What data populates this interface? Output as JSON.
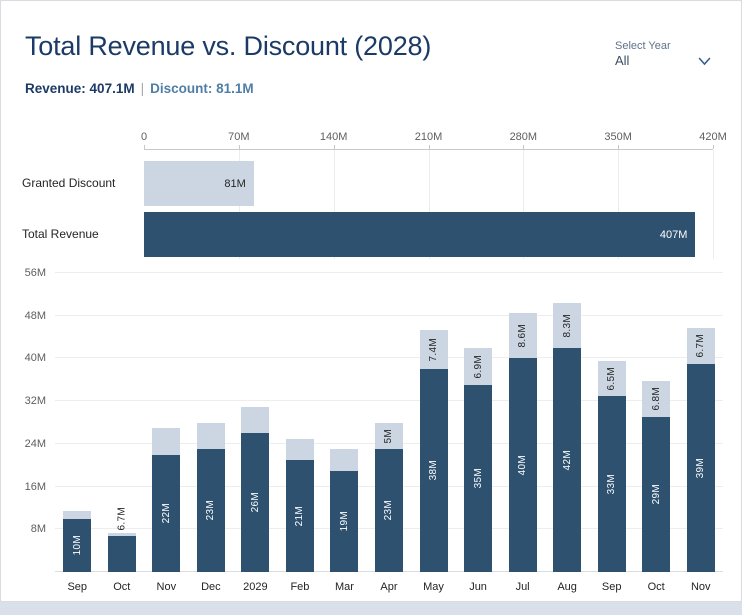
{
  "header": {
    "title": "Total Revenue vs. Discount (2028)",
    "slicer": {
      "label": "Select Year",
      "value": "All"
    },
    "summary": {
      "revenue_label": "Revenue:",
      "revenue_value": "407.1M",
      "separator": "|",
      "discount_label": "Discount:",
      "discount_value": "81.1M"
    }
  },
  "colors": {
    "revenue_bar": "#2d516f",
    "discount_bar": "#ccd6e3",
    "title_text": "#1c3a66",
    "discount_text": "#4f7ea6",
    "axis_text": "#605e5c",
    "label_text": "#252423",
    "page_strip": "#d9e0ea"
  },
  "chart_data": [
    {
      "type": "bar",
      "orientation": "horizontal",
      "axis_position": "top",
      "grid": true,
      "xlim": [
        0,
        420
      ],
      "x_ticks": [
        0,
        70,
        140,
        210,
        280,
        350,
        420
      ],
      "x_tick_labels": [
        "0",
        "70M",
        "140M",
        "210M",
        "280M",
        "350M",
        "420M"
      ],
      "rows": [
        {
          "label": "Granted Discount",
          "value": 81,
          "value_label": "81M",
          "color_key": "discount_bar",
          "label_color": "#252423"
        },
        {
          "label": "Total Revenue",
          "value": 407,
          "value_label": "407M",
          "color_key": "revenue_bar",
          "label_color": "#ffffff"
        }
      ]
    },
    {
      "type": "bar",
      "stacked": true,
      "grid": true,
      "ylim": [
        0,
        56
      ],
      "y_ticks": [
        8,
        16,
        24,
        32,
        40,
        48,
        56
      ],
      "y_tick_labels": [
        "8M",
        "16M",
        "24M",
        "32M",
        "40M",
        "48M",
        "56M"
      ],
      "series_names": [
        "Total Revenue",
        "Granted Discount"
      ],
      "categories": [
        "Sep",
        "Oct",
        "Nov",
        "Dec",
        "2029",
        "Feb",
        "Mar",
        "Apr",
        "May",
        "Jun",
        "Jul",
        "Aug",
        "Sep",
        "Oct",
        "Nov"
      ],
      "points": [
        {
          "category": "Sep",
          "revenue": 10,
          "revenue_label": "10M",
          "discount": 1.5,
          "discount_label": null
        },
        {
          "category": "Oct",
          "revenue": 6.7,
          "revenue_label": "6.7M",
          "discount": 0.6,
          "discount_label": null
        },
        {
          "category": "Nov",
          "revenue": 22,
          "revenue_label": "22M",
          "discount": 5,
          "discount_label": null
        },
        {
          "category": "Dec",
          "revenue": 23,
          "revenue_label": "23M",
          "discount": 5,
          "discount_label": null
        },
        {
          "category": "2029",
          "revenue": 26,
          "revenue_label": "26M",
          "discount": 5,
          "discount_label": null
        },
        {
          "category": "Feb",
          "revenue": 21,
          "revenue_label": "21M",
          "discount": 4,
          "discount_label": null
        },
        {
          "category": "Mar",
          "revenue": 19,
          "revenue_label": "19M",
          "discount": 4,
          "discount_label": null
        },
        {
          "category": "Apr",
          "revenue": 23,
          "revenue_label": "23M",
          "discount": 5,
          "discount_label": "5M"
        },
        {
          "category": "May",
          "revenue": 38,
          "revenue_label": "38M",
          "discount": 7.4,
          "discount_label": "7.4M"
        },
        {
          "category": "Jun",
          "revenue": 35,
          "revenue_label": "35M",
          "discount": 6.9,
          "discount_label": "6.9M"
        },
        {
          "category": "Jul",
          "revenue": 40,
          "revenue_label": "40M",
          "discount": 8.6,
          "discount_label": "8.6M"
        },
        {
          "category": "Aug",
          "revenue": 42,
          "revenue_label": "42M",
          "discount": 8.3,
          "discount_label": "8.3M"
        },
        {
          "category": "Sep",
          "revenue": 33,
          "revenue_label": "33M",
          "discount": 6.5,
          "discount_label": "6.5M"
        },
        {
          "category": "Oct",
          "revenue": 29,
          "revenue_label": "29M",
          "discount": 6.8,
          "discount_label": "6.8M"
        },
        {
          "category": "Nov",
          "revenue": 39,
          "revenue_label": "39M",
          "discount": 6.7,
          "discount_label": "6.7M"
        }
      ]
    }
  ]
}
